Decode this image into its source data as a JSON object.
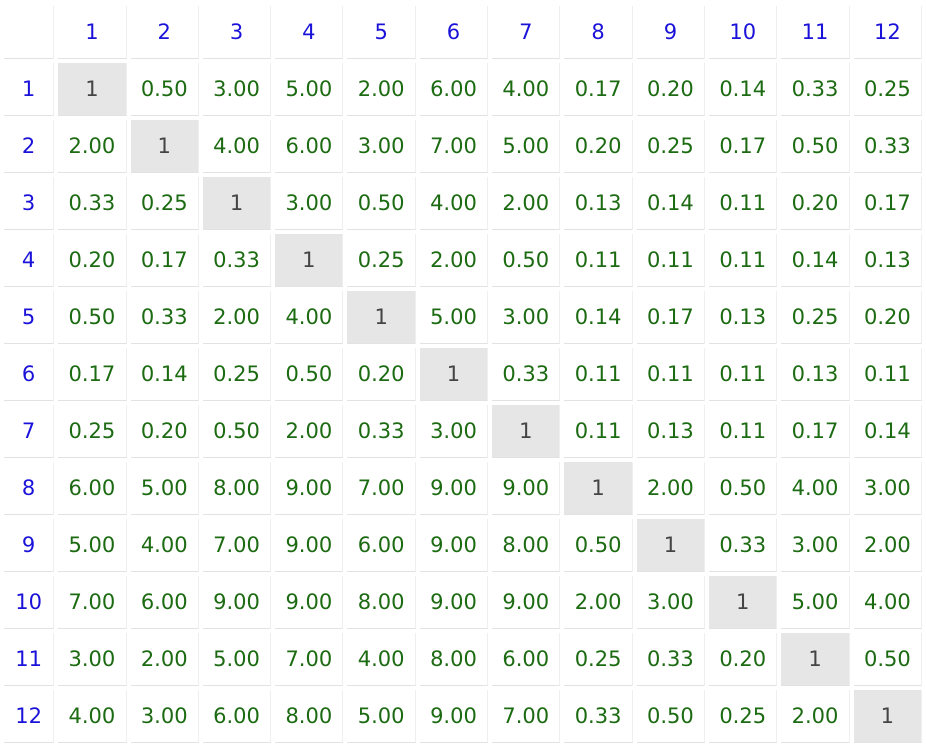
{
  "matrix": {
    "headers": [
      "1",
      "2",
      "3",
      "4",
      "5",
      "6",
      "7",
      "8",
      "9",
      "10",
      "11",
      "12"
    ],
    "rows": [
      {
        "label": "1",
        "cells": [
          "1",
          "0.50",
          "3.00",
          "5.00",
          "2.00",
          "6.00",
          "4.00",
          "0.17",
          "0.20",
          "0.14",
          "0.33",
          "0.25"
        ]
      },
      {
        "label": "2",
        "cells": [
          "2.00",
          "1",
          "4.00",
          "6.00",
          "3.00",
          "7.00",
          "5.00",
          "0.20",
          "0.25",
          "0.17",
          "0.50",
          "0.33"
        ]
      },
      {
        "label": "3",
        "cells": [
          "0.33",
          "0.25",
          "1",
          "3.00",
          "0.50",
          "4.00",
          "2.00",
          "0.13",
          "0.14",
          "0.11",
          "0.20",
          "0.17"
        ]
      },
      {
        "label": "4",
        "cells": [
          "0.20",
          "0.17",
          "0.33",
          "1",
          "0.25",
          "2.00",
          "0.50",
          "0.11",
          "0.11",
          "0.11",
          "0.14",
          "0.13"
        ]
      },
      {
        "label": "5",
        "cells": [
          "0.50",
          "0.33",
          "2.00",
          "4.00",
          "1",
          "5.00",
          "3.00",
          "0.14",
          "0.17",
          "0.13",
          "0.25",
          "0.20"
        ]
      },
      {
        "label": "6",
        "cells": [
          "0.17",
          "0.14",
          "0.25",
          "0.50",
          "0.20",
          "1",
          "0.33",
          "0.11",
          "0.11",
          "0.11",
          "0.13",
          "0.11"
        ]
      },
      {
        "label": "7",
        "cells": [
          "0.25",
          "0.20",
          "0.50",
          "2.00",
          "0.33",
          "3.00",
          "1",
          "0.11",
          "0.13",
          "0.11",
          "0.17",
          "0.14"
        ]
      },
      {
        "label": "8",
        "cells": [
          "6.00",
          "5.00",
          "8.00",
          "9.00",
          "7.00",
          "9.00",
          "9.00",
          "1",
          "2.00",
          "0.50",
          "4.00",
          "3.00"
        ]
      },
      {
        "label": "9",
        "cells": [
          "5.00",
          "4.00",
          "7.00",
          "9.00",
          "6.00",
          "9.00",
          "8.00",
          "0.50",
          "1",
          "0.33",
          "3.00",
          "2.00"
        ]
      },
      {
        "label": "10",
        "cells": [
          "7.00",
          "6.00",
          "9.00",
          "9.00",
          "8.00",
          "9.00",
          "9.00",
          "2.00",
          "3.00",
          "1",
          "5.00",
          "4.00"
        ]
      },
      {
        "label": "11",
        "cells": [
          "3.00",
          "2.00",
          "5.00",
          "7.00",
          "4.00",
          "8.00",
          "6.00",
          "0.25",
          "0.33",
          "0.20",
          "1",
          "0.50"
        ]
      },
      {
        "label": "12",
        "cells": [
          "4.00",
          "3.00",
          "6.00",
          "8.00",
          "5.00",
          "9.00",
          "7.00",
          "0.33",
          "0.50",
          "0.25",
          "2.00",
          "1"
        ]
      }
    ]
  },
  "colors": {
    "header_text": "#1a12d8",
    "value_text": "#1c6b12",
    "diagonal_bg": "#e6e6e6",
    "diagonal_text": "#444444"
  }
}
